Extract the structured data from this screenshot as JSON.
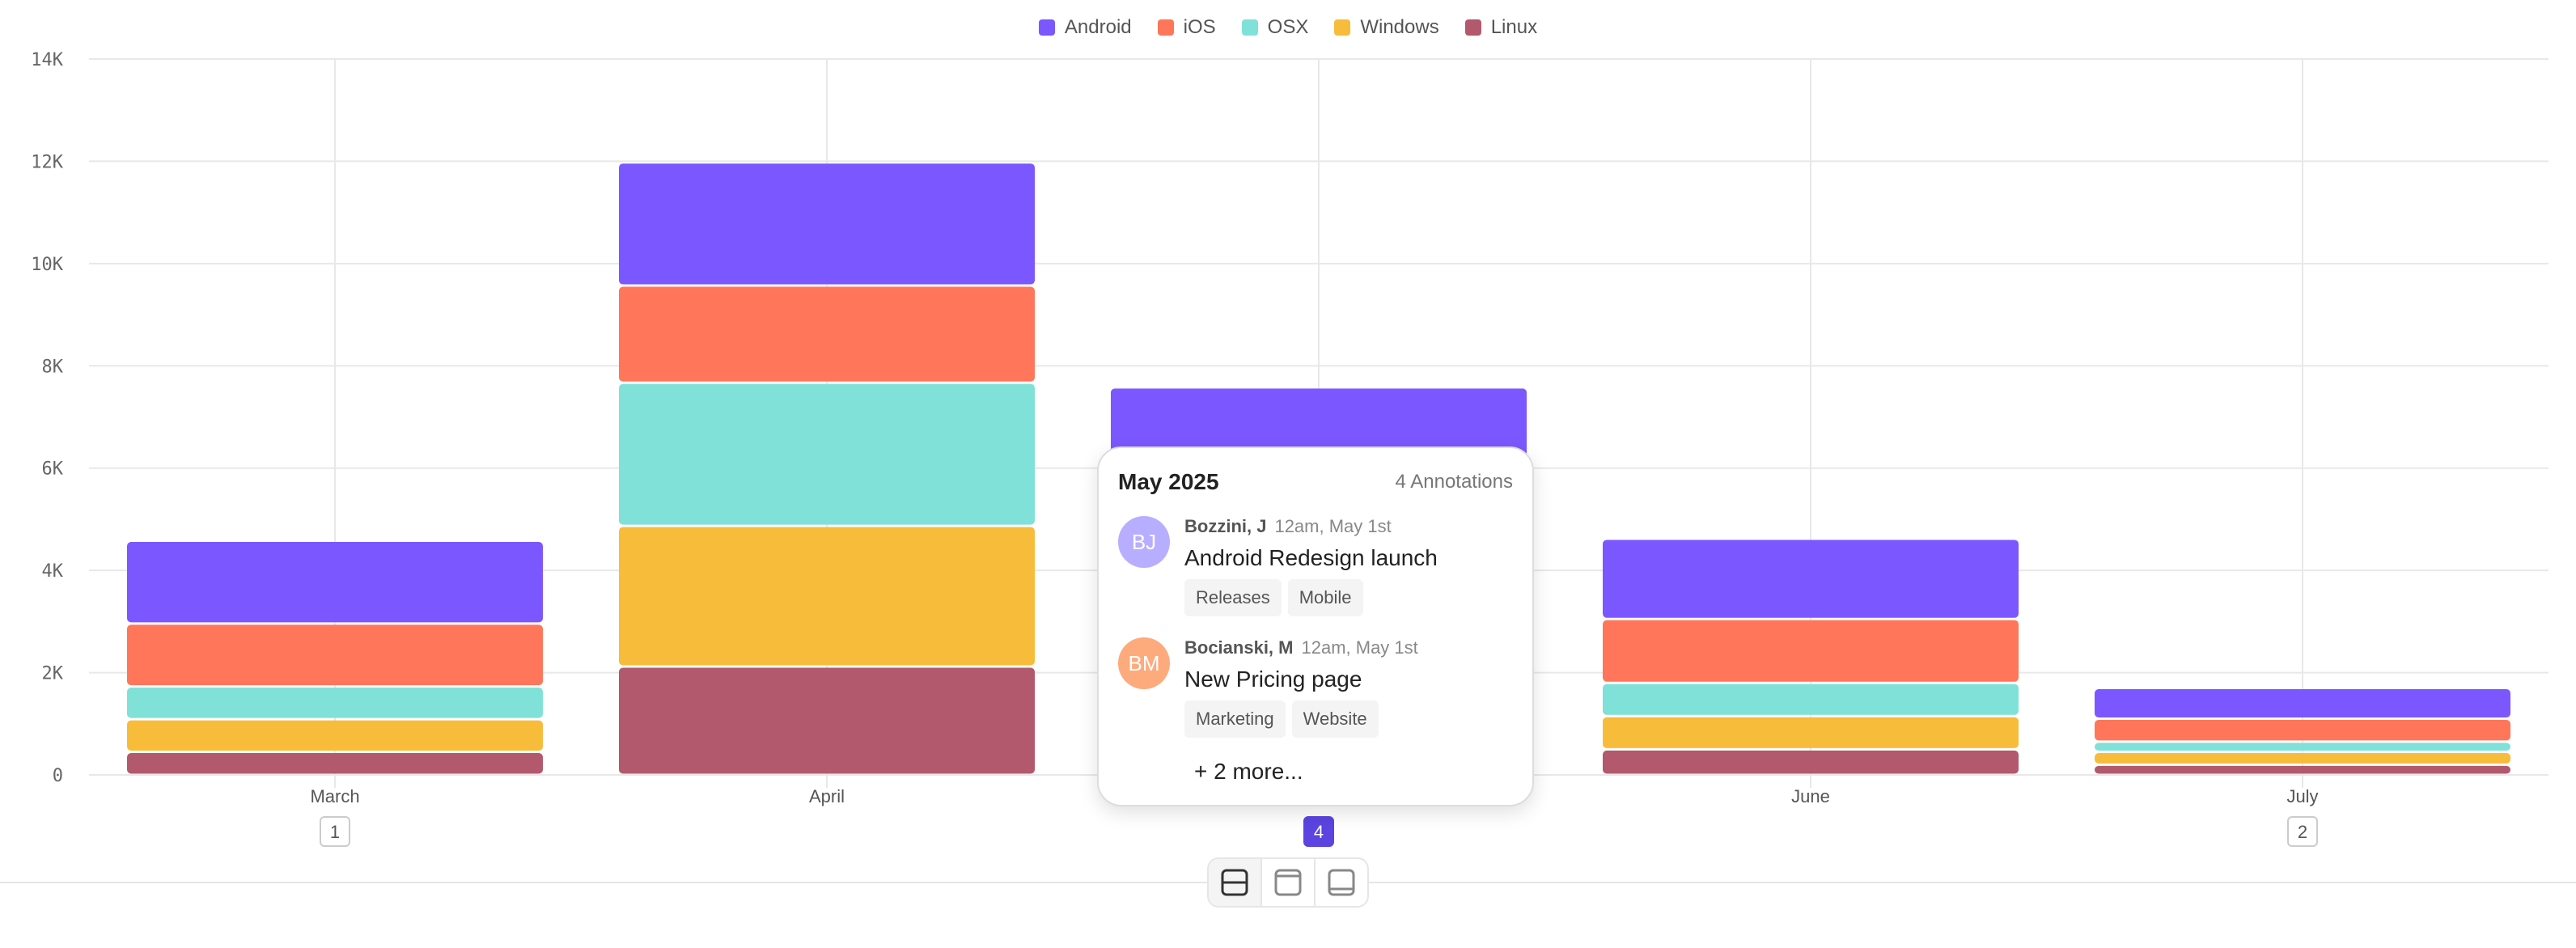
{
  "chart_data": {
    "type": "bar",
    "stacked": true,
    "categories": [
      "March",
      "April",
      "May",
      "June",
      "July"
    ],
    "series": [
      {
        "name": "Android",
        "color": "#7B57FF",
        "values": [
          1620,
          2410,
          1600,
          1570,
          600
        ]
      },
      {
        "name": "iOS",
        "color": "#FF765A",
        "values": [
          1230,
          1900,
          1350,
          1250,
          450
        ]
      },
      {
        "name": "OSX",
        "color": "#80E1D9",
        "values": [
          640,
          2800,
          1750,
          650,
          200
        ]
      },
      {
        "name": "Windows",
        "color": "#F8BC3B",
        "values": [
          640,
          2750,
          1630,
          650,
          250
        ]
      },
      {
        "name": "Linux",
        "color": "#B2596E",
        "values": [
          450,
          2120,
          1250,
          500,
          200
        ]
      }
    ],
    "yticks": [
      "0",
      "2K",
      "4K",
      "6K",
      "8K",
      "10K",
      "12K",
      "14K"
    ],
    "ylim": [
      0,
      14000
    ],
    "grid": true,
    "legend": "top-center",
    "annotation_counts": [
      "1",
      "",
      "4",
      "",
      "2"
    ],
    "annotation_badge_color": "#5B44E0"
  },
  "tooltip": {
    "title": "May 2025",
    "count": "4 Annotations",
    "items": [
      {
        "initials": "BJ",
        "author": "Bozzini, J",
        "time": "12am, May 1st",
        "text": "Android Redesign launch",
        "tags": [
          "Releases",
          "Mobile"
        ],
        "color": "#B8AEFF"
      },
      {
        "initials": "BM",
        "author": "Bocianski, M",
        "time": "12am, May 1st",
        "text": "New Pricing page",
        "tags": [
          "Marketing",
          "Website"
        ],
        "color": "#FDAB7D"
      }
    ],
    "more": "+ 2 more..."
  },
  "toolbar": {
    "buttons": [
      {
        "icon": "split-horizontal-icon",
        "active": true
      },
      {
        "icon": "panel-top-icon",
        "active": false
      },
      {
        "icon": "panel-bottom-icon",
        "active": false
      }
    ]
  }
}
